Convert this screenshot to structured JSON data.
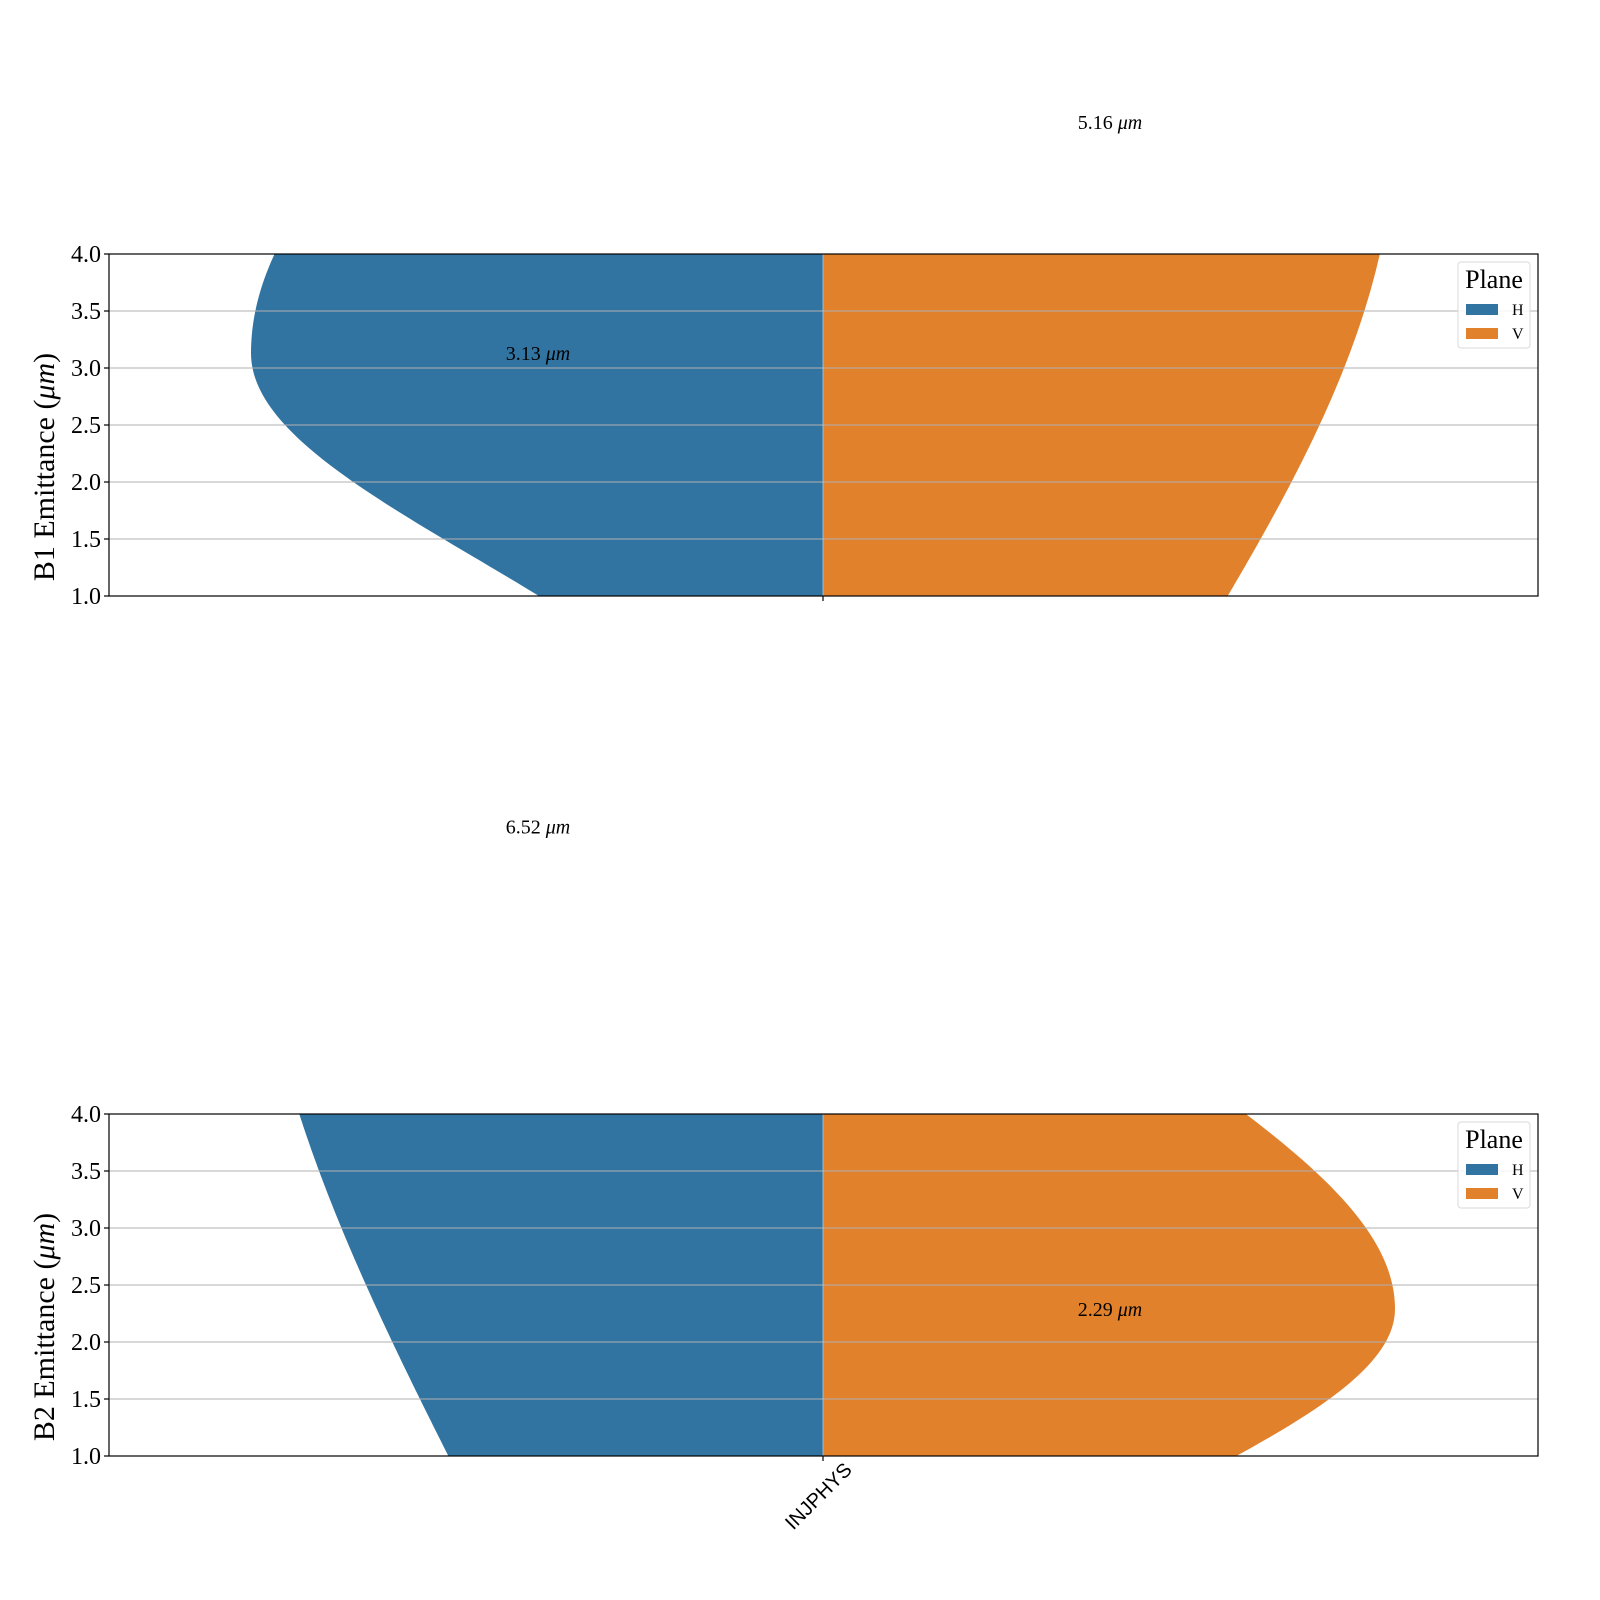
{
  "colors": {
    "H": "#3274a1",
    "V": "#e1812c",
    "grid": "#b0b0b0",
    "axis": "#000000"
  },
  "chart_data": [
    {
      "type": "violin",
      "title": "",
      "ylabel_prefix": "B1 Emittance (",
      "ylabel_unit": "μm",
      "ylabel_suffix": ")",
      "ylim": [
        1.0,
        4.0
      ],
      "yticks": [
        "1.0",
        "1.5",
        "2.0",
        "2.5",
        "3.0",
        "3.5",
        "4.0"
      ],
      "grid": true,
      "categories": [
        "INJPHYS"
      ],
      "show_xticklabels": false,
      "legend": {
        "title": "Plane",
        "placement": "top-right",
        "entries": [
          "H",
          "V"
        ]
      },
      "series": [
        {
          "name": "H",
          "side": "left",
          "peak": 3.13,
          "spread_below": 1.8,
          "spread_above": 3.0
        },
        {
          "name": "V",
          "side": "right",
          "peak": 5.16,
          "spread_below": 5.0,
          "spread_above": 3.0
        }
      ],
      "annotations": [
        {
          "series": "H",
          "value": "3.13",
          "unit": "μm",
          "y": 3.13
        },
        {
          "series": "V",
          "value": "5.16",
          "unit": "μm",
          "y": 5.16
        }
      ]
    },
    {
      "type": "violin",
      "title": "",
      "ylabel_prefix": "B2 Emittance (",
      "ylabel_unit": "μm",
      "ylabel_suffix": ")",
      "ylim": [
        1.0,
        4.0
      ],
      "yticks": [
        "1.0",
        "1.5",
        "2.0",
        "2.5",
        "3.0",
        "3.5",
        "4.0"
      ],
      "grid": true,
      "categories": [
        "INJPHYS"
      ],
      "show_xticklabels": true,
      "legend": {
        "title": "Plane",
        "placement": "top-right",
        "entries": [
          "H",
          "V"
        ]
      },
      "series": [
        {
          "name": "H",
          "side": "left",
          "peak": 6.52,
          "spread_below": 6.0,
          "spread_above": 3.0
        },
        {
          "name": "V",
          "side": "right",
          "peak": 2.29,
          "spread_below": 1.6,
          "spread_above": 2.2
        }
      ],
      "annotations": [
        {
          "series": "H",
          "value": "6.52",
          "unit": "μm",
          "y": 6.52
        },
        {
          "series": "V",
          "value": "2.29",
          "unit": "μm",
          "y": 2.29
        }
      ]
    }
  ]
}
